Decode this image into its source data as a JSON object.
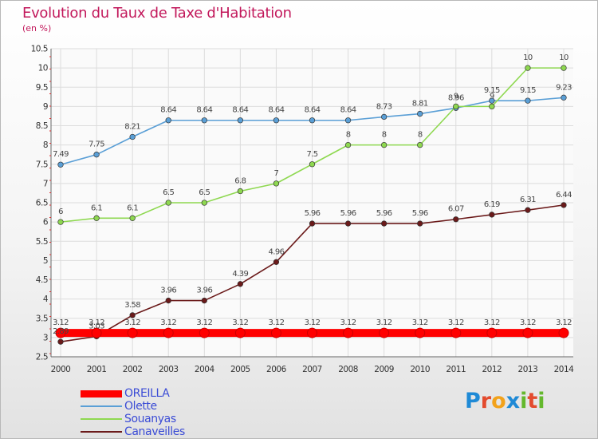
{
  "chart_data": {
    "type": "line",
    "title": "Evolution du Taux de Taxe d'Habitation",
    "subtitle": "(en %)",
    "x": [
      "2000",
      "2001",
      "2002",
      "2003",
      "2004",
      "2005",
      "2006",
      "2007",
      "2008",
      "2009",
      "2010",
      "2011",
      "2012",
      "2013",
      "2014"
    ],
    "ylim": [
      2.5,
      10.5
    ],
    "yticks": [
      2.5,
      3,
      3.5,
      4,
      4.5,
      5,
      5.5,
      6,
      6.5,
      7,
      7.5,
      8,
      8.5,
      9,
      9.5,
      10,
      10.5
    ],
    "ytick_labels": [
      "2.5",
      "3",
      "3.5",
      "4",
      "4.5",
      "5",
      "5.5",
      "6",
      "6.5",
      "7",
      "7.5",
      "8",
      "8.5",
      "9",
      "9.5",
      "10",
      "10.5"
    ],
    "grid": true,
    "legend": "bottom-left",
    "series": [
      {
        "name": "OREILLA",
        "color": "#ff0000",
        "values": [
          3.12,
          3.12,
          3.12,
          3.12,
          3.12,
          3.12,
          3.12,
          3.12,
          3.12,
          3.12,
          3.12,
          3.12,
          3.12,
          3.12,
          3.12
        ],
        "labels": [
          "3.12",
          "3.12",
          "3.12",
          "3.12",
          "3.12",
          "3.12",
          "3.12",
          "3.12",
          "3.12",
          "3.12",
          "3.12",
          "3.12",
          "3.12",
          "3.12",
          "3.12"
        ]
      },
      {
        "name": "Olette",
        "color": "#5a9fd6",
        "values": [
          7.49,
          7.75,
          8.21,
          8.64,
          8.64,
          8.64,
          8.64,
          8.64,
          8.64,
          8.73,
          8.81,
          8.96,
          9.15,
          9.15,
          9.23
        ],
        "labels": [
          "7.49",
          "7.75",
          "8.21",
          "8.64",
          "8.64",
          "8.64",
          "8.64",
          "8.64",
          "8.64",
          "8.73",
          "8.81",
          "8.96",
          "9.15",
          "9.15",
          "9.23"
        ]
      },
      {
        "name": "Souanyas",
        "color": "#8ed850",
        "values": [
          6,
          6.1,
          6.1,
          6.5,
          6.5,
          6.8,
          7,
          7.5,
          8,
          8,
          8,
          9,
          9,
          10,
          10
        ],
        "labels": [
          "6",
          "6.1",
          "6.1",
          "6.5",
          "6.5",
          "6.8",
          "7",
          "7.5",
          "8",
          "8",
          "8",
          "9",
          "9",
          "10",
          "10"
        ]
      },
      {
        "name": "Canaveilles",
        "color": "#6b1a1a",
        "values": [
          2.89,
          3.03,
          3.58,
          3.96,
          3.96,
          4.39,
          4.96,
          5.96,
          5.96,
          5.96,
          5.96,
          6.07,
          6.19,
          6.31,
          6.44
        ],
        "labels": [
          "2.89",
          "3.03",
          "3.58",
          "3.96",
          "3.96",
          "4.39",
          "4.96",
          "5.96",
          "5.96",
          "5.96",
          "5.96",
          "6.07",
          "6.19",
          "6.31",
          "6.44"
        ]
      }
    ]
  },
  "logo": {
    "letters": [
      "P",
      "r",
      "o",
      "x",
      "i",
      "t",
      "i"
    ]
  }
}
